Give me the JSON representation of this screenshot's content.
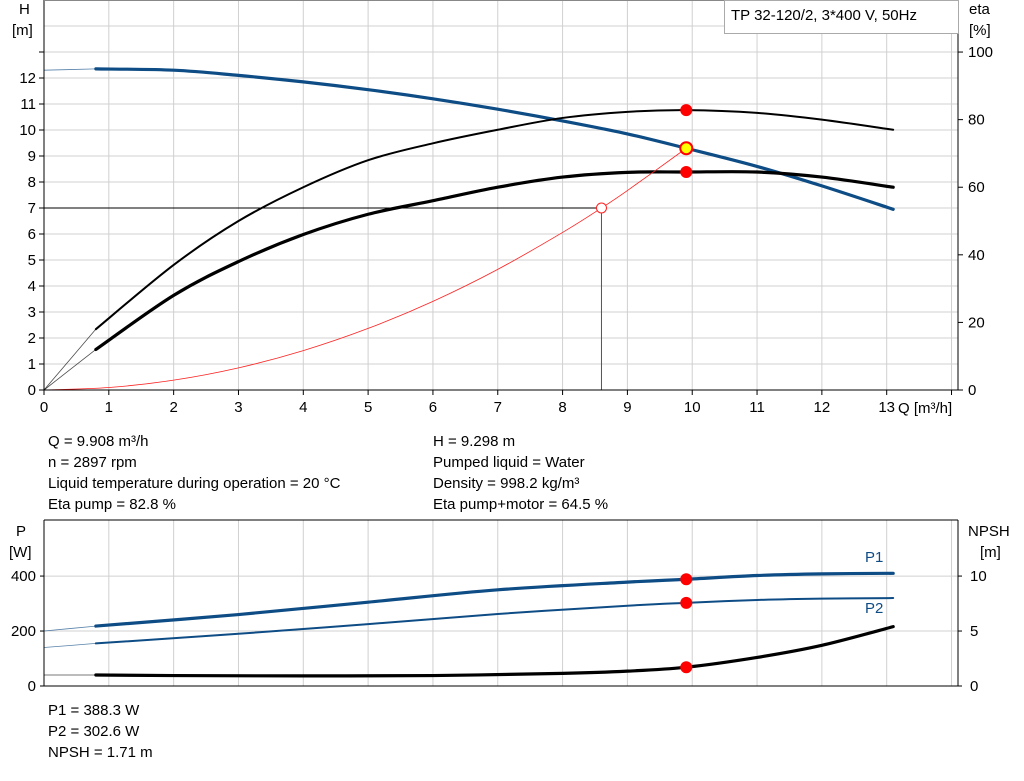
{
  "legend_title": "TP 32-120/2, 3*400 V, 50Hz",
  "colors": {
    "head": "#0e4c85",
    "power": "#0e4c85",
    "efficiency": "#000000",
    "npsh": "#000000",
    "system": "#ff2020",
    "marker": "#ff0000",
    "duty_fill": "#ffff00",
    "grid": "#d0d0d0"
  },
  "operating_info": {
    "left": [
      "Q = 9.908 m³/h",
      "n = 2897 rpm",
      "Liquid temperature during operation = 20 °C",
      "Eta pump = 82.8 %"
    ],
    "right": [
      "H = 9.298 m",
      "Pumped liquid = Water",
      "Density = 998.2 kg/m³",
      "Eta pump+motor = 64.5 %"
    ]
  },
  "power_info": [
    "P1 = 388.3 W",
    "P2 = 302.6 W",
    "NPSH = 1.71 m"
  ],
  "chart_data": [
    {
      "type": "line",
      "title": "",
      "xlabel": "Q [m³/h]",
      "ylabel_left": [
        "H",
        "[m]"
      ],
      "ylabel_right": [
        "eta",
        "[%]"
      ],
      "xlim": [
        0,
        14.1
      ],
      "ylim_left": [
        0,
        15
      ],
      "ylim_right": [
        0,
        115.4
      ],
      "x_ticks": [
        0,
        1,
        2,
        3,
        4,
        5,
        6,
        7,
        8,
        9,
        10,
        11,
        12,
        13
      ],
      "y_ticks_left": [
        0,
        1,
        2,
        3,
        4,
        5,
        6,
        7,
        8,
        9,
        10,
        11,
        12
      ],
      "y_ticks_right": [
        0,
        20,
        40,
        60,
        80,
        100
      ],
      "grid": true,
      "series": [
        {
          "key": "H",
          "axis": "left",
          "x": [
            0.8,
            2,
            3,
            4,
            5,
            6,
            7,
            8,
            9,
            9.908,
            11,
            12,
            13.1
          ],
          "y": [
            12.35,
            12.3,
            12.1,
            11.85,
            11.55,
            11.2,
            10.8,
            10.35,
            9.85,
            9.298,
            8.6,
            7.85,
            6.95
          ],
          "extrapolated": {
            "x": [
              0,
              0.8
            ],
            "y": [
              12.3,
              12.35
            ]
          }
        },
        {
          "key": "eta_pump",
          "axis": "right",
          "x": [
            0.8,
            2,
            3,
            4,
            5,
            6,
            7,
            8,
            9,
            9.908,
            11,
            12,
            13.1
          ],
          "y": [
            18,
            37,
            50,
            60,
            68,
            73,
            77,
            80.5,
            82.3,
            82.8,
            82,
            80,
            77
          ],
          "extrapolated": {
            "x": [
              0,
              0.8
            ],
            "y": [
              0,
              18
            ]
          }
        },
        {
          "key": "eta_pump_motor",
          "axis": "right",
          "x": [
            0.8,
            2,
            3,
            4,
            5,
            6,
            7,
            8,
            9,
            9.908,
            11,
            12,
            13.1
          ],
          "y": [
            12,
            28,
            38,
            46,
            52,
            56,
            60,
            63,
            64.4,
            64.5,
            64.5,
            63,
            60
          ],
          "extrapolated": {
            "x": [
              0,
              0.8
            ],
            "y": [
              0,
              12
            ]
          }
        },
        {
          "key": "system_curve",
          "axis": "left",
          "x": [
            0,
            1,
            2,
            3,
            4,
            5,
            6,
            7,
            8,
            8.6,
            9,
            9.908
          ],
          "y": [
            0,
            0.095,
            0.379,
            0.852,
            1.515,
            2.368,
            3.41,
            4.64,
            6.06,
            7.0,
            7.67,
            9.298
          ]
        }
      ],
      "duty_point": {
        "x": 9.908,
        "y": 9.298
      },
      "eta_points": [
        82.8,
        64.5
      ],
      "reference_point": {
        "x": 8.6,
        "y": 7.0
      }
    },
    {
      "type": "line",
      "title": "",
      "ylabel_left": [
        "P",
        "[W]"
      ],
      "ylabel_right": [
        "NPSH",
        "[m]"
      ],
      "xlim": [
        0,
        14.1
      ],
      "ylim_left": [
        0,
        604
      ],
      "ylim_right": [
        0,
        15.1
      ],
      "y_ticks_left": [
        0,
        200,
        400
      ],
      "y_ticks_right": [
        0,
        5,
        10
      ],
      "grid": true,
      "series": [
        {
          "key": "P1",
          "name": "P1",
          "axis": "left",
          "x": [
            0.8,
            3,
            5,
            7,
            9,
            9.908,
            11,
            12,
            13.1
          ],
          "y": [
            218,
            260,
            305,
            350,
            378,
            388.3,
            402,
            408,
            410
          ],
          "extrapolated": {
            "x": [
              0,
              0.8
            ],
            "y": [
              200,
              218
            ]
          }
        },
        {
          "key": "P2",
          "name": "P2",
          "axis": "left",
          "x": [
            0.8,
            3,
            5,
            7,
            9,
            9.908,
            11,
            12,
            13.1
          ],
          "y": [
            155,
            190,
            225,
            262,
            292,
            302.6,
            313,
            318,
            320
          ],
          "extrapolated": {
            "x": [
              0,
              0.8
            ],
            "y": [
              140,
              155
            ]
          }
        },
        {
          "key": "NPSH",
          "axis": "right",
          "x": [
            0.8,
            2,
            4,
            6,
            8,
            9,
            9.908,
            11,
            12,
            13.1
          ],
          "y": [
            1.0,
            0.95,
            0.92,
            0.95,
            1.15,
            1.35,
            1.71,
            2.6,
            3.7,
            5.4
          ],
          "extrapolated": {
            "x": [
              0,
              0.8
            ],
            "y": [
              1.0,
              1.0
            ]
          }
        }
      ],
      "points": [
        {
          "series": "P1",
          "x": 9.908,
          "y": 388.3
        },
        {
          "series": "P2",
          "x": 9.908,
          "y": 302.6
        },
        {
          "series": "NPSH",
          "x": 9.908,
          "y": 1.71
        }
      ]
    }
  ]
}
